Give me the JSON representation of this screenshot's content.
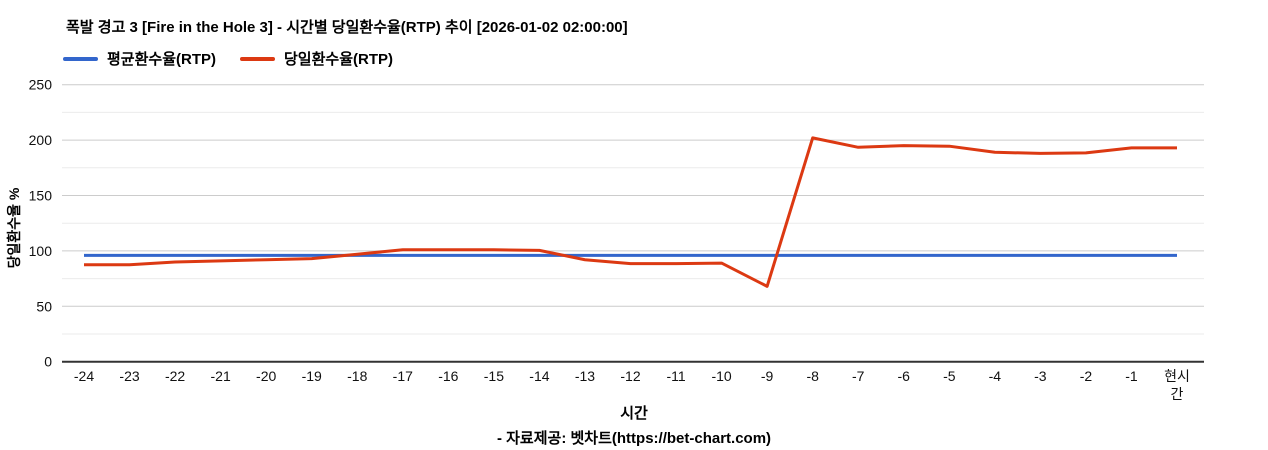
{
  "chart_data": {
    "type": "line",
    "title": "폭발 경고 3 [Fire in the Hole 3] - 시간별 당일환수율(RTP) 추이 [2026-01-02 02:00:00]",
    "xlabel": "시간",
    "ylabel": "당일환수율 %",
    "ylim": [
      0,
      250
    ],
    "yticks": [
      0,
      50,
      100,
      150,
      200,
      250
    ],
    "minor_yticks": [
      25,
      75,
      125,
      175,
      225
    ],
    "grid": true,
    "legend_position": "top-left",
    "categories": [
      "-24",
      "-23",
      "-22",
      "-21",
      "-20",
      "-19",
      "-18",
      "-17",
      "-16",
      "-15",
      "-14",
      "-13",
      "-12",
      "-11",
      "-10",
      "-9",
      "-8",
      "-7",
      "-6",
      "-5",
      "-4",
      "-3",
      "-2",
      "-1",
      "현시간"
    ],
    "series": [
      {
        "name": "평균환수율(RTP)",
        "color": "#3366cc",
        "values": [
          96,
          96,
          96,
          96,
          96,
          96,
          96,
          96,
          96,
          96,
          96,
          96,
          96,
          96,
          96,
          96,
          96,
          96,
          96,
          96,
          96,
          96,
          96,
          96,
          96
        ]
      },
      {
        "name": "당일환수율(RTP)",
        "color": "#dc3912",
        "values": [
          87.5,
          87.5,
          90,
          91,
          92,
          93,
          97,
          101,
          101,
          101,
          100.5,
          92,
          88.5,
          88.5,
          89,
          68,
          202,
          193.5,
          195,
          194.5,
          189,
          188,
          188.5,
          193,
          193
        ]
      }
    ]
  },
  "footer": {
    "text": "- 자료제공: 벳차트(https://bet-chart.com)"
  },
  "colors": {
    "major_grid": "#cccccc",
    "minor_grid": "#ebebeb",
    "axis_line": "#333333"
  }
}
